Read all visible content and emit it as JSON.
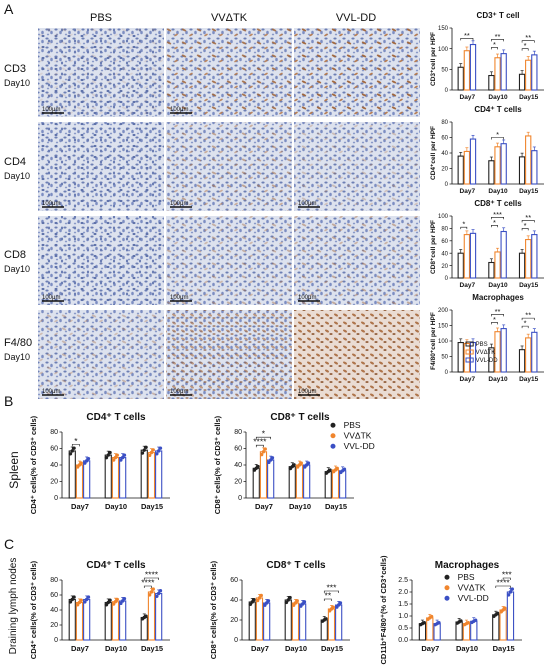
{
  "panel_letters": [
    "A",
    "B",
    "C"
  ],
  "panel_a": {
    "columns": [
      "PBS",
      "VVΔTK",
      "VVL-DD"
    ],
    "rows": [
      {
        "marker": "CD3",
        "day": "Day10"
      },
      {
        "marker": "CD4",
        "day": "Day10"
      },
      {
        "marker": "CD8",
        "day": "Day10"
      },
      {
        "marker": "F4/80",
        "day": "Day10"
      }
    ],
    "scale_bar": "100μm"
  },
  "panel_b_side": "Spleen",
  "panel_c_side": "Draining lymph nodes",
  "colors": {
    "PBS": "#222222",
    "VVΔTK": "#f0852d",
    "VVL-DD": "#3a4fc4"
  },
  "legend": [
    "PBS",
    "VVΔTK",
    "VVL-DD"
  ],
  "chart_data": [
    {
      "type": "bar",
      "panel": "A",
      "title": "CD3⁺ T cell",
      "ylabel": "CD3⁺cell per HPF",
      "categories": [
        "Day7",
        "Day10",
        "Day15"
      ],
      "ylim": [
        0,
        150
      ],
      "yticks": [
        0,
        50,
        100,
        150
      ],
      "series": [
        {
          "name": "PBS",
          "values": [
            55,
            35,
            38
          ]
        },
        {
          "name": "VVΔTK",
          "values": [
            95,
            78,
            72
          ]
        },
        {
          "name": "VVL-DD",
          "values": [
            110,
            88,
            85
          ]
        }
      ],
      "sig": [
        {
          "cat": 0,
          "a": 0,
          "b": 2,
          "label": "**"
        },
        {
          "cat": 1,
          "a": 0,
          "b": 1,
          "label": "*"
        },
        {
          "cat": 1,
          "a": 0,
          "b": 2,
          "label": "**"
        },
        {
          "cat": 2,
          "a": 0,
          "b": 1,
          "label": "*"
        },
        {
          "cat": 2,
          "a": 0,
          "b": 2,
          "label": "**"
        }
      ]
    },
    {
      "type": "bar",
      "panel": "A",
      "title": "CD4⁺ T cells",
      "ylabel": "CD4⁺cell per HPF",
      "categories": [
        "Day7",
        "Day10",
        "Day15"
      ],
      "ylim": [
        0,
        80
      ],
      "yticks": [
        0,
        20,
        40,
        60,
        80
      ],
      "series": [
        {
          "name": "PBS",
          "values": [
            36,
            30,
            35
          ]
        },
        {
          "name": "VVΔTK",
          "values": [
            42,
            48,
            62
          ]
        },
        {
          "name": "VVL-DD",
          "values": [
            58,
            52,
            43
          ]
        }
      ],
      "sig": [
        {
          "cat": 1,
          "a": 0,
          "b": 2,
          "label": "*"
        }
      ]
    },
    {
      "type": "bar",
      "panel": "A",
      "title": "CD8⁺ T cells",
      "ylabel": "CD8⁺cell per HPF",
      "categories": [
        "Day7",
        "Day10",
        "Day15"
      ],
      "ylim": [
        0,
        100
      ],
      "yticks": [
        0,
        20,
        40,
        60,
        80,
        100
      ],
      "series": [
        {
          "name": "PBS",
          "values": [
            40,
            25,
            40
          ]
        },
        {
          "name": "VVΔTK",
          "values": [
            70,
            42,
            62
          ]
        },
        {
          "name": "VVL-DD",
          "values": [
            72,
            75,
            70
          ]
        }
      ],
      "sig": [
        {
          "cat": 0,
          "a": 0,
          "b": 1,
          "label": "*"
        },
        {
          "cat": 1,
          "a": 0,
          "b": 1,
          "label": "*"
        },
        {
          "cat": 1,
          "a": 0,
          "b": 2,
          "label": "***"
        },
        {
          "cat": 2,
          "a": 0,
          "b": 1,
          "label": "*"
        },
        {
          "cat": 2,
          "a": 0,
          "b": 2,
          "label": "**"
        }
      ]
    },
    {
      "type": "bar",
      "panel": "A",
      "title": "Macrophages",
      "ylabel": "F4/80⁺cell per HPF",
      "categories": [
        "Day7",
        "Day10",
        "Day15"
      ],
      "ylim": [
        0,
        200
      ],
      "yticks": [
        0,
        50,
        100,
        150,
        200
      ],
      "series": [
        {
          "name": "PBS",
          "values": [
            95,
            78,
            72
          ]
        },
        {
          "name": "VVΔTK",
          "values": [
            92,
            130,
            110
          ]
        },
        {
          "name": "VVL-DD",
          "values": [
            95,
            140,
            128
          ]
        }
      ],
      "sig": [
        {
          "cat": 1,
          "a": 0,
          "b": 1,
          "label": "*"
        },
        {
          "cat": 1,
          "a": 0,
          "b": 2,
          "label": "**"
        },
        {
          "cat": 2,
          "a": 0,
          "b": 1,
          "label": "*"
        },
        {
          "cat": 2,
          "a": 0,
          "b": 2,
          "label": "**"
        }
      ]
    },
    {
      "type": "bar",
      "panel": "B",
      "title": "CD4⁺ T cells",
      "ylabel": "CD4⁺ cells(% of CD3⁺ cells)",
      "categories": [
        "Day7",
        "Day10",
        "Day15"
      ],
      "ylim": [
        0,
        80
      ],
      "yticks": [
        0,
        20,
        40,
        60,
        80
      ],
      "series": [
        {
          "name": "PBS",
          "values": [
            57,
            52,
            58
          ]
        },
        {
          "name": "VVΔTK",
          "values": [
            40,
            49,
            55
          ]
        },
        {
          "name": "VVL-DD",
          "values": [
            45,
            49,
            57
          ]
        }
      ],
      "sig": [
        {
          "cat": 0,
          "a": 0,
          "b": 1,
          "label": "*"
        }
      ]
    },
    {
      "type": "bar",
      "panel": "B",
      "title": "CD8⁺ T cells",
      "ylabel": "CD8⁺ cells(% of CD3⁺ cells)",
      "categories": [
        "Day7",
        "Day10",
        "Day15"
      ],
      "ylim": [
        0,
        80
      ],
      "yticks": [
        0,
        20,
        40,
        60,
        80
      ],
      "series": [
        {
          "name": "PBS",
          "values": [
            36,
            38,
            32
          ]
        },
        {
          "name": "VVΔTK",
          "values": [
            56,
            40,
            34
          ]
        },
        {
          "name": "VVL-DD",
          "values": [
            46,
            40,
            33
          ]
        }
      ],
      "sig": [
        {
          "cat": 0,
          "a": 0,
          "b": 1,
          "label": "****"
        },
        {
          "cat": 0,
          "a": 0,
          "b": 2,
          "label": "*"
        }
      ]
    },
    {
      "type": "bar",
      "panel": "C",
      "title": "CD4⁺ T cells",
      "ylabel": "CD4⁺ cells(% of CD3⁺ cells)",
      "categories": [
        "Day7",
        "Day10",
        "Day15"
      ],
      "ylim": [
        0,
        80
      ],
      "yticks": [
        0,
        20,
        40,
        60,
        80
      ],
      "series": [
        {
          "name": "PBS",
          "values": [
            54,
            50,
            30
          ]
        },
        {
          "name": "VVΔTK",
          "values": [
            50,
            51,
            64
          ]
        },
        {
          "name": "VVL-DD",
          "values": [
            54,
            52,
            62
          ]
        }
      ],
      "sig": [
        {
          "cat": 2,
          "a": 0,
          "b": 1,
          "label": "****"
        },
        {
          "cat": 2,
          "a": 0,
          "b": 2,
          "label": "****"
        }
      ]
    },
    {
      "type": "bar",
      "panel": "C",
      "title": "CD8⁺ T cells",
      "ylabel": "CD8⁺ cells(% of CD3⁺ cells)",
      "categories": [
        "Day7",
        "Day10",
        "Day15"
      ],
      "ylim": [
        0,
        60
      ],
      "yticks": [
        0,
        20,
        40,
        60
      ],
      "series": [
        {
          "name": "PBS",
          "values": [
            38,
            40,
            20
          ]
        },
        {
          "name": "VVΔTK",
          "values": [
            42,
            37,
            31
          ]
        },
        {
          "name": "VVL-DD",
          "values": [
            37,
            36,
            35
          ]
        }
      ],
      "sig": [
        {
          "cat": 2,
          "a": 0,
          "b": 1,
          "label": "**"
        },
        {
          "cat": 2,
          "a": 0,
          "b": 2,
          "label": "***"
        }
      ]
    },
    {
      "type": "bar",
      "panel": "C",
      "title": "Macrophages",
      "ylabel": "CD11b⁺F4/80⁺(% of CD3⁺cells)",
      "categories": [
        "Day7",
        "Day10",
        "Day15"
      ],
      "ylim": [
        0,
        2.5
      ],
      "yticks": [
        0.0,
        0.5,
        1.0,
        1.5,
        2.0,
        2.5
      ],
      "series": [
        {
          "name": "PBS",
          "values": [
            0.68,
            0.75,
            1.05
          ]
        },
        {
          "name": "VVΔTK",
          "values": [
            0.92,
            0.68,
            1.25
          ]
        },
        {
          "name": "VVL-DD",
          "values": [
            0.68,
            0.78,
            2.0
          ]
        }
      ],
      "sig": [
        {
          "cat": 2,
          "a": 0,
          "b": 2,
          "label": "****"
        },
        {
          "cat": 2,
          "a": 1,
          "b": 2,
          "label": "***"
        }
      ]
    }
  ]
}
